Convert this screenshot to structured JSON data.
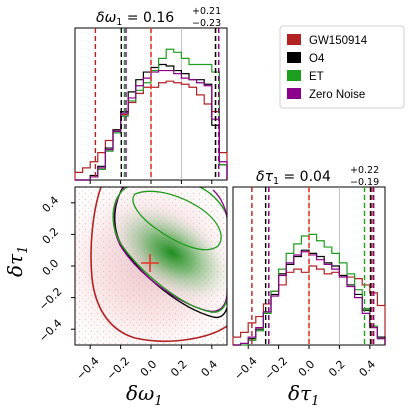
{
  "colors": {
    "GW150914": "#b22222",
    "O4": "#000000",
    "ET": "#1e9e1e",
    "ZeroNoise": "#8b008b",
    "truth": "#e8332a",
    "grid": "#b5b5b5"
  },
  "chart_data": [
    {
      "type": "step-histogram",
      "panel": "omega1-marginal",
      "title": {
        "prefix": "δω",
        "sub": "1",
        "value": " = 0.16",
        "upper": "+0.21",
        "lower": "−0.23"
      },
      "xlim": [
        -0.5,
        0.5
      ],
      "ylim": [
        0,
        1.0
      ],
      "truth": 0.0,
      "quantile_lines": [
        {
          "series": "GW150914",
          "values": [
            -0.35,
            0.0,
            0.44
          ]
        },
        {
          "series": "O4",
          "values": [
            -0.19,
            0.0,
            0.43
          ]
        },
        {
          "series": "ET",
          "values": [
            -0.18,
            0.0,
            0.44
          ]
        },
        {
          "series": "Zero Noise",
          "values": [
            -0.18,
            0.0,
            0.43
          ]
        }
      ],
      "x": [
        -0.5,
        -0.45,
        -0.4,
        -0.35,
        -0.3,
        -0.25,
        -0.2,
        -0.15,
        -0.1,
        -0.05,
        0.0,
        0.05,
        0.1,
        0.15,
        0.2,
        0.25,
        0.3,
        0.35,
        0.4,
        0.45
      ],
      "series": [
        {
          "name": "GW150914",
          "values": [
            0.05,
            0.08,
            0.12,
            0.18,
            0.26,
            0.33,
            0.43,
            0.51,
            0.57,
            0.61,
            0.61,
            0.64,
            0.65,
            0.64,
            0.63,
            0.61,
            0.56,
            0.5,
            0.45,
            0.18
          ]
        },
        {
          "name": "O4",
          "values": [
            0.0,
            0.0,
            0.03,
            0.09,
            0.21,
            0.33,
            0.45,
            0.58,
            0.66,
            0.71,
            0.74,
            0.76,
            0.75,
            0.72,
            0.7,
            0.66,
            0.66,
            0.63,
            0.36,
            0.1
          ]
        },
        {
          "name": "ET",
          "values": [
            0.0,
            0.0,
            0.02,
            0.07,
            0.19,
            0.31,
            0.42,
            0.52,
            0.59,
            0.64,
            0.72,
            0.8,
            0.86,
            0.84,
            0.8,
            0.76,
            0.76,
            0.76,
            0.71,
            0.1
          ]
        },
        {
          "name": "Zero Noise",
          "values": [
            0.0,
            0.0,
            0.02,
            0.08,
            0.2,
            0.32,
            0.44,
            0.54,
            0.62,
            0.67,
            0.71,
            0.72,
            0.72,
            0.7,
            0.67,
            0.66,
            0.64,
            0.62,
            0.4,
            0.12
          ]
        }
      ]
    },
    {
      "type": "contour-2d",
      "panel": "omega1-tau1-joint",
      "xlim": [
        -0.5,
        0.5
      ],
      "ylim": [
        -0.5,
        0.5
      ],
      "xticks": [
        "−0.4",
        "−0.2",
        "0.0",
        "0.2",
        "0.4"
      ],
      "yticks": [
        "−0.4",
        "−0.2",
        "0.0",
        "0.2",
        "0.4"
      ],
      "xlabel": {
        "main": "δω",
        "sub": "1"
      },
      "ylabel": {
        "main": "δτ",
        "sub": "1"
      },
      "truth": [
        0.0,
        0.0
      ]
    },
    {
      "type": "step-histogram",
      "panel": "tau1-marginal",
      "title": {
        "prefix": "δτ",
        "sub": "1",
        "value": " = 0.04",
        "upper": "+0.22",
        "lower": "−0.19"
      },
      "xlim": [
        -0.5,
        0.5
      ],
      "ylim": [
        0,
        1.0
      ],
      "xticks": [
        "−0.4",
        "−0.2",
        "0.0",
        "0.2",
        "0.4"
      ],
      "xlabel": {
        "main": "δτ",
        "sub": "1"
      },
      "truth": 0.0,
      "quantile_lines": [
        {
          "series": "GW150914",
          "values": [
            -0.36,
            0.0,
            0.43
          ]
        },
        {
          "series": "O4",
          "values": [
            -0.28,
            0.0,
            0.41
          ]
        },
        {
          "series": "ET",
          "values": [
            -0.27,
            0.0,
            0.36
          ]
        },
        {
          "series": "Zero Noise",
          "values": [
            -0.28,
            0.0,
            0.41
          ]
        }
      ],
      "x": [
        -0.5,
        -0.45,
        -0.4,
        -0.35,
        -0.3,
        -0.25,
        -0.2,
        -0.15,
        -0.1,
        -0.05,
        0.0,
        0.05,
        0.1,
        0.15,
        0.2,
        0.25,
        0.3,
        0.35,
        0.4,
        0.45
      ],
      "series": [
        {
          "name": "GW150914",
          "values": [
            0.05,
            0.08,
            0.14,
            0.18,
            0.26,
            0.34,
            0.38,
            0.46,
            0.48,
            0.46,
            0.5,
            0.48,
            0.45,
            0.46,
            0.44,
            0.43,
            0.42,
            0.38,
            0.33,
            0.25
          ]
        },
        {
          "name": "O4",
          "values": [
            0.0,
            0.01,
            0.04,
            0.1,
            0.2,
            0.32,
            0.45,
            0.51,
            0.56,
            0.6,
            0.58,
            0.56,
            0.52,
            0.5,
            0.44,
            0.38,
            0.32,
            0.22,
            0.12,
            0.05
          ]
        },
        {
          "name": "ET",
          "values": [
            0.0,
            0.0,
            0.03,
            0.09,
            0.2,
            0.34,
            0.48,
            0.58,
            0.64,
            0.69,
            0.7,
            0.66,
            0.62,
            0.58,
            0.52,
            0.45,
            0.35,
            0.23,
            0.12,
            0.04
          ]
        },
        {
          "name": "Zero Noise",
          "values": [
            0.0,
            0.01,
            0.05,
            0.11,
            0.21,
            0.31,
            0.44,
            0.52,
            0.57,
            0.59,
            0.57,
            0.54,
            0.51,
            0.48,
            0.43,
            0.37,
            0.3,
            0.2,
            0.11,
            0.04
          ]
        }
      ]
    }
  ],
  "legend": {
    "items": [
      {
        "label": "GW150914",
        "color": "#b22222"
      },
      {
        "label": "O4",
        "color": "#000000"
      },
      {
        "label": "ET",
        "color": "#1e9e1e"
      },
      {
        "label": "Zero Noise",
        "color": "#8b008b"
      }
    ]
  }
}
